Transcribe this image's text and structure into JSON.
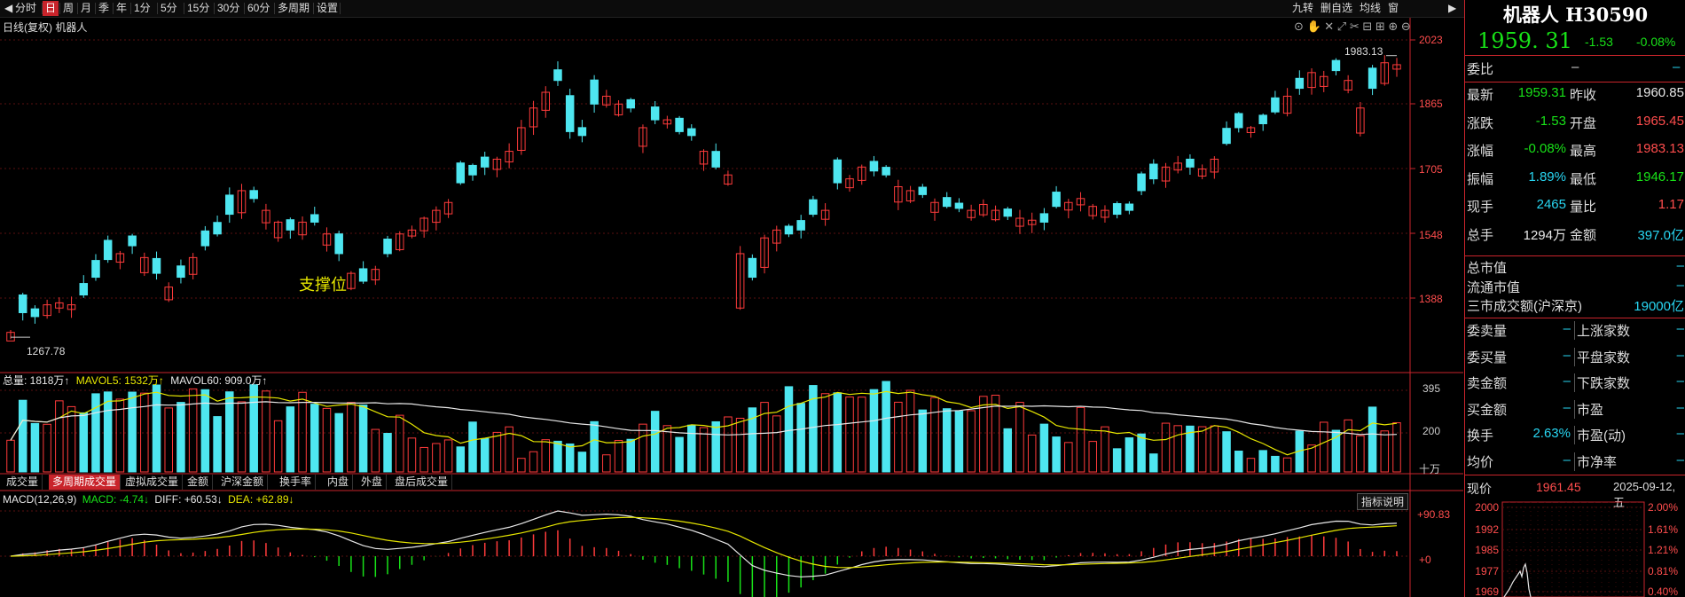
{
  "toolbar": {
    "left_items": [
      "分时",
      "日",
      "周",
      "月",
      "季",
      "年",
      "1分",
      "5分",
      "15分",
      "30分",
      "60分",
      "多周期",
      "设置"
    ],
    "active": "日",
    "right_items": [
      "九转",
      "删自选",
      "均线",
      "窗"
    ]
  },
  "chart": {
    "title": "日线(复权) 机器人",
    "annotation": "支撑位",
    "high_label": "1983.13",
    "low_label": "1267.78",
    "price_ticks": [
      "2023",
      "1865",
      "1705",
      "1548",
      "1388"
    ],
    "volume_ticks": [
      "395",
      "200"
    ],
    "volume_unit": "十万",
    "macd_ticks": [
      "+90.83",
      "+0"
    ],
    "volume_header": {
      "total": "总量: 1818万↑",
      "mavol5": "MAVOL5: 1532万↑",
      "mavol60": "MAVOL60: 909.0万↑"
    },
    "macd_header": {
      "name": "MACD(12,26,9)",
      "macd": "MACD: -4.74↓",
      "diff": "DIFF: +60.53↓",
      "dea": "DEA: +62.89↓"
    },
    "indicator_button": "指标说明",
    "sub_tabs": [
      "成交量",
      "多周期成交量",
      "虚拟成交量",
      "金额",
      "沪深金额",
      "换手率",
      "内盘",
      "外盘",
      "盘后成交量"
    ],
    "sub_tab_active": "多周期成交量"
  },
  "colors": {
    "up": "#ff3b3b",
    "down": "#4ee6f0",
    "ma_white": "#e8e8e8",
    "ma_yellow": "#e6e600",
    "grid": "#5a1010",
    "accent": "#c9242b"
  },
  "chart_data": {
    "type": "candlestick",
    "price_axis_range": [
      1268,
      2023
    ],
    "close_series_approx": [
      1280,
      1330,
      1320,
      1350,
      1355,
      1350,
      1375,
      1420,
      1465,
      1480,
      1500,
      1470,
      1430,
      1395,
      1420,
      1470,
      1500,
      1530,
      1580,
      1640,
      1620,
      1590,
      1560,
      1540,
      1560,
      1560,
      1530,
      1480,
      1430,
      1410,
      1440,
      1480,
      1530,
      1540,
      1570,
      1590,
      1610,
      1660,
      1680,
      1700,
      1720,
      1740,
      1800,
      1850,
      1890,
      1920,
      1790,
      1780,
      1860,
      1880,
      1860,
      1850,
      1800,
      1820,
      1820,
      1790,
      1780,
      1740,
      1700,
      1680,
      1480,
      1420,
      1520,
      1540,
      1530,
      1540,
      1580,
      1590,
      1660,
      1670,
      1700,
      1690,
      1680,
      1650,
      1640,
      1630,
      1610,
      1600,
      1595,
      1590,
      1605,
      1590,
      1575,
      1570,
      1565,
      1560,
      1600,
      1610,
      1620,
      1600,
      1590,
      1580,
      1590,
      1640,
      1670,
      1700,
      1710,
      1700,
      1695,
      1720,
      1760,
      1800,
      1800,
      1810,
      1840,
      1880,
      1900,
      1940,
      1930,
      1945,
      1920,
      1850,
      1900,
      1965,
      1960
    ],
    "last_close": 1959.31,
    "high": 1983.13,
    "low": 1267.78
  },
  "quote": {
    "name": "机器人 H30590",
    "price": "1959. 31",
    "change": "-1.53",
    "change_pct": "-0.08%",
    "weibi_label": "委比",
    "weibi_val": "–",
    "weibi_val2": "–",
    "rows": [
      {
        "l1": "最新",
        "v1": "1959.31",
        "c1": "green",
        "l2": "昨收",
        "v2": "1960.85",
        "c2": "white"
      },
      {
        "l1": "涨跌",
        "v1": "-1.53",
        "c1": "green",
        "l2": "开盘",
        "v2": "1965.45",
        "c2": "red"
      },
      {
        "l1": "涨幅",
        "v1": "-0.08%",
        "c1": "green",
        "l2": "最高",
        "v2": "1983.13",
        "c2": "red"
      },
      {
        "l1": "振幅",
        "v1": "1.89%",
        "c1": "cyan",
        "l2": "最低",
        "v2": "1946.17",
        "c2": "green"
      },
      {
        "l1": "现手",
        "v1": "2465",
        "c1": "cyan",
        "l2": "量比",
        "v2": "1.17",
        "c2": "red"
      },
      {
        "l1": "总手",
        "v1": "1294万",
        "c1": "white",
        "l2": "金额",
        "v2": "397.0亿",
        "c2": "cyan"
      }
    ],
    "market_rows": [
      {
        "label": "总市值",
        "val": "–"
      },
      {
        "label": "流通市值",
        "val": "–"
      },
      {
        "label": "三市成交额(沪深京)",
        "val": "19000亿"
      }
    ],
    "order_rows": [
      {
        "l1": "委卖量",
        "v1": "–",
        "l2": "上涨家数",
        "v2": "–"
      },
      {
        "l1": "委买量",
        "v1": "–",
        "l2": "平盘家数",
        "v2": "–"
      },
      {
        "l1": "卖金额",
        "v1": "–",
        "l2": "下跌家数",
        "v2": "–"
      },
      {
        "l1": "买金额",
        "v1": "–",
        "l2": "市盈",
        "v2": "–"
      },
      {
        "l1": "换手",
        "v1": "2.63%",
        "l2": "市盈(动)",
        "v2": "–"
      },
      {
        "l1": "均价",
        "v1": "–",
        "l2": "市净率",
        "v2": "–"
      }
    ],
    "mini": {
      "label": "现价",
      "price": "1961.45",
      "date": "2025-09-12,五",
      "left_ticks": [
        "2000",
        "1992",
        "1985",
        "1977",
        "1969"
      ],
      "right_ticks": [
        "2.00%",
        "1.61%",
        "1.21%",
        "0.81%",
        "0.40%"
      ]
    }
  }
}
